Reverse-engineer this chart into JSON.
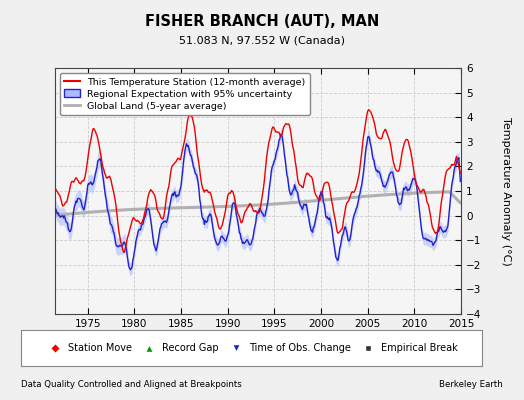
{
  "title": "FISHER BRANCH (AUT), MAN",
  "subtitle": "51.083 N, 97.552 W (Canada)",
  "ylabel": "Temperature Anomaly (°C)",
  "xlim": [
    1971.5,
    2014.5
  ],
  "ylim": [
    -4,
    6
  ],
  "yticks": [
    -4,
    -3,
    -2,
    -1,
    0,
    1,
    2,
    3,
    4,
    5,
    6
  ],
  "xticks": [
    1975,
    1980,
    1985,
    1990,
    1995,
    2000,
    2005,
    2010,
    2015
  ],
  "bg_color": "#f0f0f0",
  "plot_bg_color": "#f5f5f5",
  "station_color": "#ee0000",
  "regional_color": "#2222cc",
  "regional_fill_color": "#aabbff",
  "global_color": "#b0b0b0",
  "grid_color": "#cccccc",
  "footer_left": "Data Quality Controlled and Aligned at Breakpoints",
  "footer_right": "Berkeley Earth",
  "legend_entries": [
    "This Temperature Station (12-month average)",
    "Regional Expectation with 95% uncertainty",
    "Global Land (5-year average)"
  ]
}
